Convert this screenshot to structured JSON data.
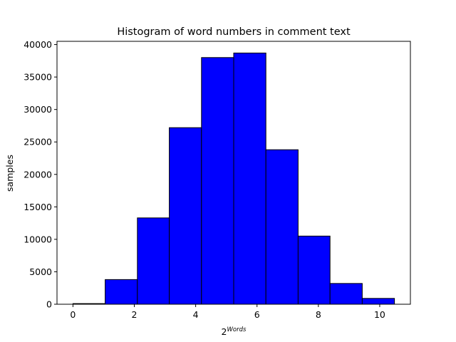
{
  "chart_data": {
    "type": "bar",
    "title": "Histogram of word numbers in comment text",
    "xlabel": {
      "base": "2",
      "superscript": "Words"
    },
    "ylabel": "samples",
    "bins": [
      {
        "x0": 0.0,
        "x1": 1.05,
        "value": 100
      },
      {
        "x0": 1.05,
        "x1": 2.1,
        "value": 3800
      },
      {
        "x0": 2.1,
        "x1": 3.14,
        "value": 13300
      },
      {
        "x0": 3.14,
        "x1": 4.19,
        "value": 27200
      },
      {
        "x0": 4.19,
        "x1": 5.24,
        "value": 38000
      },
      {
        "x0": 5.24,
        "x1": 6.29,
        "value": 38700
      },
      {
        "x0": 6.29,
        "x1": 7.34,
        "value": 23800
      },
      {
        "x0": 7.34,
        "x1": 8.38,
        "value": 10500
      },
      {
        "x0": 8.38,
        "x1": 9.43,
        "value": 3200
      },
      {
        "x0": 9.43,
        "x1": 10.48,
        "value": 900
      }
    ],
    "xlim": [
      -0.52,
      11.0
    ],
    "ylim": [
      0,
      40500
    ],
    "xticks": [
      0,
      2,
      4,
      6,
      8,
      10
    ],
    "yticks": [
      0,
      5000,
      10000,
      15000,
      20000,
      25000,
      30000,
      35000,
      40000
    ],
    "bar_color": "#0000ff",
    "edge_color": "#000000",
    "grid": false,
    "legend": "none"
  }
}
